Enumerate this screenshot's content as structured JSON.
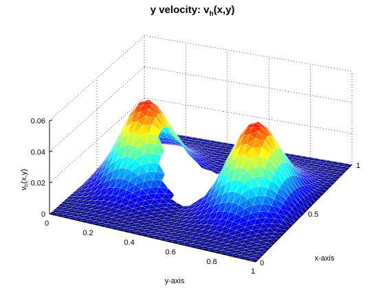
{
  "chart_data": {
    "type": "surface",
    "title": "y velocity: v_h(x,y)",
    "title_main": "y velocity: v",
    "title_sub": "h",
    "title_tail": "(x,y)",
    "xlabel": "x-axis",
    "ylabel": "y-axis",
    "zlabel_main": "v",
    "zlabel_sub": "h",
    "zlabel_tail": "(x,y)",
    "xlim": [
      0,
      1
    ],
    "ylim": [
      0,
      1
    ],
    "zlim": [
      0,
      0.06
    ],
    "xticks": [
      "0",
      "0.5",
      "1"
    ],
    "yticks": [
      "0",
      "0.2",
      "0.4",
      "0.6",
      "0.8",
      "1"
    ],
    "zticks": [
      "0",
      "0.02",
      "0.04",
      "0.06"
    ],
    "colormap": "jet",
    "mesh": "triangular",
    "grid": "dotted",
    "hole": {
      "shape": "circle",
      "center_x": 0.5,
      "center_y": 0.5,
      "radius": 0.15
    },
    "peaks": [
      {
        "x": 0.5,
        "y": 0.22,
        "v": 0.06
      },
      {
        "x": 0.5,
        "y": 0.78,
        "v": 0.06
      }
    ],
    "boundary_value": 0
  }
}
